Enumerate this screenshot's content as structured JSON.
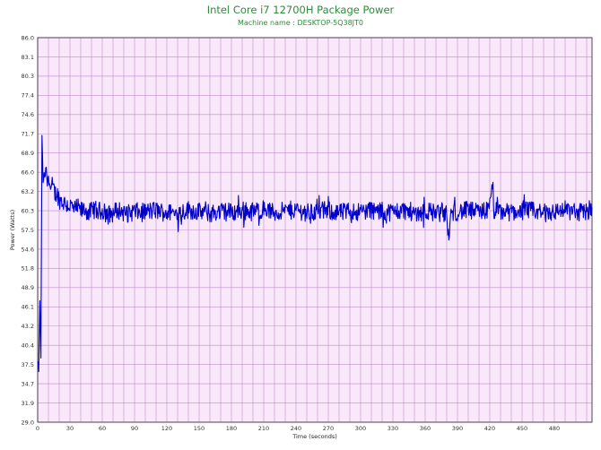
{
  "chart_data": {
    "type": "line",
    "title": "Intel Core i7  12700H Package Power",
    "subtitle": "Machine name : DESKTOP-5Q38JT0",
    "xlabel": "Time (seconds)",
    "ylabel": "Power (Watts)",
    "xlim": [
      0,
      515
    ],
    "ylim": [
      29.0,
      86.0
    ],
    "x_ticks": [
      0,
      30,
      60,
      90,
      120,
      150,
      180,
      210,
      240,
      270,
      300,
      330,
      360,
      390,
      420,
      450,
      480
    ],
    "y_ticks": [
      "86.0",
      "83.1",
      "80.3",
      "77.4",
      "74.6",
      "71.7",
      "68.9",
      "66.0",
      "63.2",
      "60.3",
      "57.5",
      "54.6",
      "51.8",
      "48.9",
      "46.1",
      "43.2",
      "40.4",
      "37.5",
      "34.7",
      "31.9",
      "29.0"
    ],
    "grid": true,
    "background_color": "#f8e8fa",
    "grid_color": "#c18ac8",
    "line_color": "#0000cc",
    "title_color": "#2e8b3a",
    "series": [
      {
        "x": [
          0,
          1,
          2,
          3,
          4,
          5,
          6,
          7,
          8,
          9,
          10,
          12,
          14,
          16,
          18,
          20,
          22,
          25,
          28,
          31,
          34,
          37,
          40,
          44,
          48,
          52,
          56,
          60,
          65,
          70,
          75,
          80,
          85,
          90,
          95,
          100,
          110,
          120,
          130,
          140,
          150,
          160,
          170,
          180,
          190,
          200,
          210,
          220,
          230,
          240,
          250,
          260,
          270,
          280,
          290,
          300,
          310,
          320,
          330,
          340,
          350,
          360,
          370,
          380,
          382,
          384,
          390,
          400,
          410,
          420,
          422,
          424,
          430,
          440,
          450,
          460,
          470,
          480,
          490,
          500,
          510,
          515
        ],
        "values": [
          37.8,
          36.5,
          47.0,
          38.5,
          71.5,
          64.5,
          66.0,
          65.5,
          66.8,
          64.0,
          65.5,
          63.5,
          64.2,
          62.8,
          63.0,
          62.0,
          61.8,
          61.5,
          61.2,
          61.0,
          60.5,
          60.8,
          60.3,
          60.5,
          60.0,
          60.6,
          60.2,
          60.4,
          59.8,
          60.0,
          60.5,
          60.1,
          59.9,
          60.3,
          60.0,
          60.2,
          60.4,
          60.0,
          60.1,
          60.5,
          60.2,
          59.9,
          60.3,
          60.1,
          60.4,
          60.2,
          60.6,
          60.0,
          60.3,
          60.5,
          60.1,
          60.2,
          60.4,
          60.0,
          60.3,
          60.2,
          60.5,
          60.1,
          60.2,
          60.4,
          60.0,
          60.3,
          60.1,
          59.8,
          56.0,
          60.0,
          60.2,
          60.4,
          60.1,
          60.5,
          64.2,
          60.3,
          60.2,
          60.1,
          60.4,
          60.3,
          60.0,
          60.2,
          60.5,
          60.1,
          60.3,
          60.6
        ]
      }
    ]
  }
}
